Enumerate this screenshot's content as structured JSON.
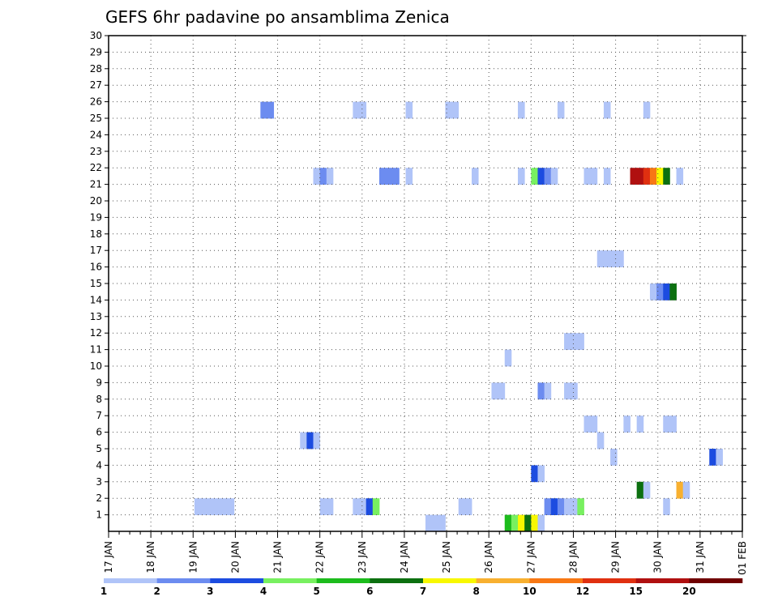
{
  "chart_data": {
    "type": "heatmap",
    "title": "GEFS 6hr padavine po ansamblima Zenica",
    "x_ticks": [
      "17 JAN",
      "18 JAN",
      "19 JAN",
      "20 JAN",
      "21 JAN",
      "22 JAN",
      "23 JAN",
      "24 JAN",
      "25 JAN",
      "26 JAN",
      "27 JAN",
      "28 JAN",
      "29 JAN",
      "30 JAN",
      "31 JAN",
      "01 FEB"
    ],
    "y_ticks": [
      1,
      2,
      3,
      4,
      5,
      6,
      7,
      8,
      9,
      10,
      11,
      12,
      13,
      14,
      15,
      16,
      17,
      18,
      19,
      20,
      21,
      22,
      23,
      24,
      25,
      26,
      27,
      28,
      29,
      30
    ],
    "x_range": [
      "17 JAN 00Z",
      "01 FEB 00Z"
    ],
    "time_step_hours": 6,
    "y_range": [
      0,
      30
    ],
    "grid": true,
    "legend": {
      "placement": "bottom",
      "breaks": [
        "1",
        "2",
        "3",
        "4",
        "5",
        "6",
        "7",
        "8",
        "10",
        "12",
        "15",
        "20"
      ],
      "colors": [
        "#b0c4f8",
        "#6c8cf0",
        "#1c4ce0",
        "#78f060",
        "#1cbc1c",
        "#0c7010",
        "#f8f800",
        "#f8b030",
        "#f87814",
        "#e03010",
        "#b01010",
        "#700000"
      ]
    },
    "cells": [
      {
        "member": 0,
        "step": 48,
        "level": 0
      },
      {
        "member": 0,
        "step": 49,
        "level": 0
      },
      {
        "member": 0,
        "step": 50,
        "level": 0
      },
      {
        "member": 0,
        "step": 60,
        "level": 4
      },
      {
        "member": 0,
        "step": 61,
        "level": 3
      },
      {
        "member": 0,
        "step": 62,
        "level": 6
      },
      {
        "member": 0,
        "step": 63,
        "level": 5
      },
      {
        "member": 0,
        "step": 64,
        "level": 6
      },
      {
        "member": 0,
        "step": 65,
        "level": 0
      },
      {
        "member": 1,
        "step": 53,
        "level": 0
      },
      {
        "member": 1,
        "step": 54,
        "level": 0
      },
      {
        "member": 1,
        "step": 66,
        "level": 1
      },
      {
        "member": 1,
        "step": 67,
        "level": 2
      },
      {
        "member": 1,
        "step": 68,
        "level": 1
      },
      {
        "member": 1,
        "step": 69,
        "level": 0
      },
      {
        "member": 1,
        "step": 70,
        "level": 0
      },
      {
        "member": 1,
        "step": 71,
        "level": 3
      },
      {
        "member": 1,
        "step": 84,
        "level": 0
      },
      {
        "member": 2,
        "step": 86,
        "level": 7
      },
      {
        "member": 2,
        "step": 87,
        "level": 0
      },
      {
        "member": 3,
        "step": 64,
        "level": 2
      },
      {
        "member": 3,
        "step": 65,
        "level": 0
      },
      {
        "member": 4,
        "step": 76,
        "level": 0
      },
      {
        "member": 4,
        "step": 91,
        "level": 2
      },
      {
        "member": 4,
        "step": 92,
        "level": 0
      },
      {
        "member": 5,
        "step": 29,
        "level": 0
      },
      {
        "member": 5,
        "step": 30,
        "level": 2
      },
      {
        "member": 5,
        "step": 31,
        "level": 0
      },
      {
        "member": 5,
        "step": 74,
        "level": 0
      },
      {
        "member": 6,
        "step": 72,
        "level": 0
      },
      {
        "member": 6,
        "step": 73,
        "level": 0
      },
      {
        "member": 6,
        "step": 78,
        "level": 0
      },
      {
        "member": 6,
        "step": 80,
        "level": 0
      },
      {
        "member": 6,
        "step": 84,
        "level": 0
      },
      {
        "member": 6,
        "step": 85,
        "level": 0
      },
      {
        "member": 8,
        "step": 58,
        "level": 0
      },
      {
        "member": 8,
        "step": 59,
        "level": 0
      },
      {
        "member": 8,
        "step": 65,
        "level": 1
      },
      {
        "member": 8,
        "step": 66,
        "level": 0
      },
      {
        "member": 8,
        "step": 69,
        "level": 0
      },
      {
        "member": 8,
        "step": 70,
        "level": 0
      },
      {
        "member": 10,
        "step": 60,
        "level": 0
      },
      {
        "member": 11,
        "step": 69,
        "level": 0
      },
      {
        "member": 11,
        "step": 70,
        "level": 0
      },
      {
        "member": 11,
        "step": 71,
        "level": 0
      },
      {
        "member": 14,
        "step": 82,
        "level": 0
      },
      {
        "member": 14,
        "step": 83,
        "level": 1
      },
      {
        "member": 14,
        "step": 84,
        "level": 2
      },
      {
        "member": 14,
        "step": 85,
        "level": 5
      },
      {
        "member": 16,
        "step": 74,
        "level": 0
      },
      {
        "member": 16,
        "step": 75,
        "level": 0
      },
      {
        "member": 16,
        "step": 76,
        "level": 0
      },
      {
        "member": 16,
        "step": 77,
        "level": 0
      },
      {
        "member": 21,
        "step": 31,
        "level": 0
      },
      {
        "member": 21,
        "step": 32,
        "level": 1
      },
      {
        "member": 21,
        "step": 33,
        "level": 0
      },
      {
        "member": 21,
        "step": 41,
        "level": 1
      },
      {
        "member": 21,
        "step": 42,
        "level": 1
      },
      {
        "member": 21,
        "step": 43,
        "level": 1
      },
      {
        "member": 21,
        "step": 45,
        "level": 0
      },
      {
        "member": 21,
        "step": 55,
        "level": 0
      },
      {
        "member": 21,
        "step": 62,
        "level": 0
      },
      {
        "member": 21,
        "step": 64,
        "level": 3
      },
      {
        "member": 21,
        "step": 65,
        "level": 2
      },
      {
        "member": 21,
        "step": 66,
        "level": 1
      },
      {
        "member": 21,
        "step": 67,
        "level": 0
      },
      {
        "member": 21,
        "step": 72,
        "level": 0
      },
      {
        "member": 21,
        "step": 73,
        "level": 0
      },
      {
        "member": 21,
        "step": 75,
        "level": 0
      },
      {
        "member": 21,
        "step": 79,
        "level": 10
      },
      {
        "member": 21,
        "step": 80,
        "level": 10
      },
      {
        "member": 21,
        "step": 81,
        "level": 9
      },
      {
        "member": 21,
        "step": 82,
        "level": 8
      },
      {
        "member": 21,
        "step": 83,
        "level": 6
      },
      {
        "member": 21,
        "step": 84,
        "level": 5
      },
      {
        "member": 21,
        "step": 86,
        "level": 0
      },
      {
        "member": 25,
        "step": 23,
        "level": 1
      },
      {
        "member": 25,
        "step": 24,
        "level": 1
      },
      {
        "member": 25,
        "step": 37,
        "level": 0
      },
      {
        "member": 25,
        "step": 38,
        "level": 0
      },
      {
        "member": 25,
        "step": 45,
        "level": 0
      },
      {
        "member": 25,
        "step": 51,
        "level": 0
      },
      {
        "member": 25,
        "step": 52,
        "level": 0
      },
      {
        "member": 25,
        "step": 62,
        "level": 0
      },
      {
        "member": 25,
        "step": 68,
        "level": 0
      },
      {
        "member": 25,
        "step": 75,
        "level": 0
      },
      {
        "member": 25,
        "step": 81,
        "level": 0
      }
    ],
    "rows": [
      {
        "member": 1,
        "cells": [
          [
            13,
            0
          ],
          [
            14,
            0
          ],
          [
            15,
            0
          ],
          [
            16,
            0
          ],
          [
            17,
            0
          ],
          [
            18,
            0
          ],
          [
            32,
            0
          ],
          [
            33,
            0
          ],
          [
            37,
            0
          ],
          [
            38,
            0
          ],
          [
            39,
            2
          ],
          [
            40,
            3
          ]
        ]
      },
      {
        "member": 2,
        "cells": [
          [
            80,
            5
          ],
          [
            81,
            0
          ]
        ]
      }
    ]
  }
}
